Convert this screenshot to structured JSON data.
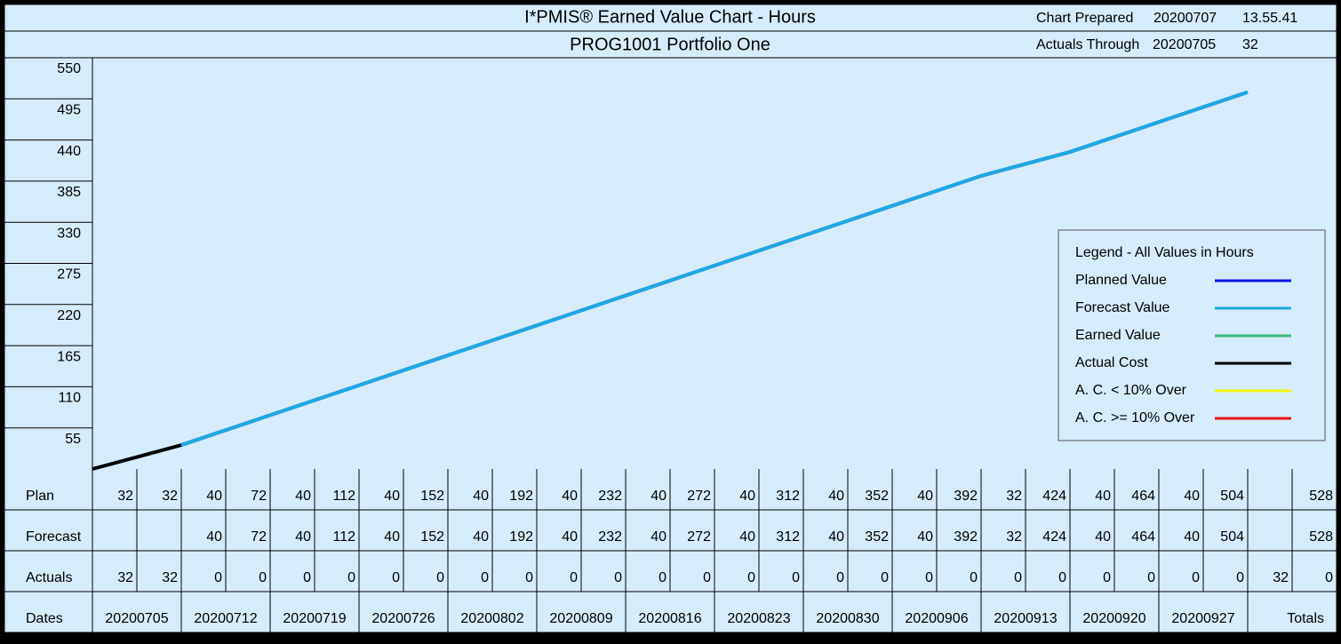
{
  "header": {
    "prepared_label": "Chart Prepared",
    "prepared_date": "20200707",
    "prepared_time": "13.55.41",
    "actuals_label": "Actuals Through",
    "actuals_date": "20200705",
    "actuals_value": 32
  },
  "chart_data": {
    "type": "line",
    "title": "I*PMIS® Earned Value Chart - Hours",
    "subtitle": "PROG1001 Portfolio One",
    "categories": [
      "20200705",
      "20200712",
      "20200719",
      "20200726",
      "20200802",
      "20200809",
      "20200816",
      "20200823",
      "20200830",
      "20200906",
      "20200913",
      "20200920",
      "20200927"
    ],
    "ylim": [
      0,
      550
    ],
    "yticks": [
      55,
      110,
      165,
      220,
      275,
      330,
      385,
      440,
      495,
      550
    ],
    "legend_title": "Legend - All Values in Hours",
    "legend": "right",
    "series": [
      {
        "name": "Planned Value",
        "color": "#0a14e6",
        "values": [
          32,
          72,
          112,
          152,
          192,
          232,
          272,
          312,
          352,
          392,
          424,
          464,
          504
        ]
      },
      {
        "name": "Forecast Value",
        "color": "#1fa8e2",
        "values": [
          32,
          72,
          112,
          152,
          192,
          232,
          272,
          312,
          352,
          392,
          424,
          464,
          504
        ]
      },
      {
        "name": "Earned Value",
        "color": "#3cb878",
        "values": [
          null,
          null,
          null,
          null,
          null,
          null,
          null,
          null,
          null,
          null,
          null,
          null,
          null
        ]
      },
      {
        "name": "Actual Cost",
        "color": "#000000",
        "values": [
          32,
          null,
          null,
          null,
          null,
          null,
          null,
          null,
          null,
          null,
          null,
          null,
          null
        ]
      },
      {
        "name": "A. C. < 10% Over",
        "color": "#f2f20a",
        "values": [
          null,
          null,
          null,
          null,
          null,
          null,
          null,
          null,
          null,
          null,
          null,
          null,
          null
        ]
      },
      {
        "name": "A. C. >= 10% Over",
        "color": "#e61414",
        "values": [
          null,
          null,
          null,
          null,
          null,
          null,
          null,
          null,
          null,
          null,
          null,
          null,
          null
        ]
      }
    ]
  },
  "table": {
    "rows": [
      {
        "label": "Plan",
        "cells": [
          32,
          32,
          40,
          72,
          40,
          112,
          40,
          152,
          40,
          192,
          40,
          232,
          40,
          272,
          40,
          312,
          40,
          352,
          40,
          392,
          32,
          424,
          40,
          464,
          40,
          504,
          null,
          528
        ]
      },
      {
        "label": "Forecast",
        "cells": [
          null,
          null,
          40,
          72,
          40,
          112,
          40,
          152,
          40,
          192,
          40,
          232,
          40,
          272,
          40,
          312,
          40,
          352,
          40,
          392,
          32,
          424,
          40,
          464,
          40,
          504,
          null,
          528
        ]
      },
      {
        "label": "Actuals",
        "cells": [
          32,
          32,
          0,
          0,
          0,
          0,
          0,
          0,
          0,
          0,
          0,
          0,
          0,
          0,
          0,
          0,
          0,
          0,
          0,
          0,
          0,
          0,
          0,
          0,
          0,
          0,
          32,
          0
        ]
      }
    ],
    "dates_label": "Dates",
    "totals_label": "Totals"
  }
}
